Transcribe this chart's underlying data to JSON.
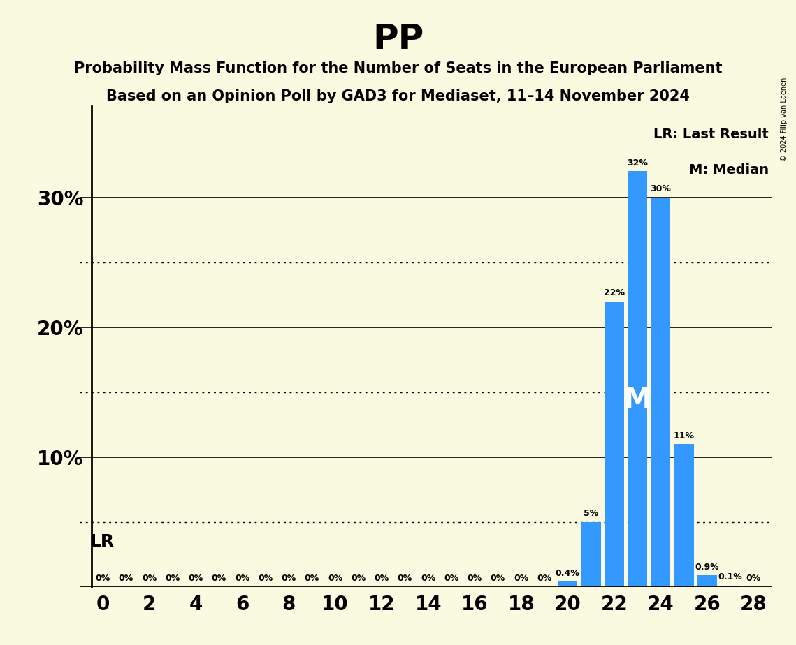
{
  "title": "PP",
  "subtitle1": "Probability Mass Function for the Number of Seats in the European Parliament",
  "subtitle2": "Based on an Opinion Poll by GAD3 for Mediaset, 11–14 November 2024",
  "copyright": "© 2024 Filip van Laenen",
  "x_min": 0,
  "x_max": 28,
  "x_tick_step": 2,
  "y_min": 0,
  "y_max": 35,
  "y_ticks_solid": [
    10,
    20,
    30
  ],
  "y_ticks_dotted": [
    5,
    15,
    25
  ],
  "background_color": "#FAFAE0",
  "bar_color": "#3399FF",
  "seats": [
    0,
    1,
    2,
    3,
    4,
    5,
    6,
    7,
    8,
    9,
    10,
    11,
    12,
    13,
    14,
    15,
    16,
    17,
    18,
    19,
    20,
    21,
    22,
    23,
    24,
    25,
    26,
    27,
    28
  ],
  "values": [
    0,
    0,
    0,
    0,
    0,
    0,
    0,
    0,
    0,
    0,
    0,
    0,
    0,
    0,
    0,
    0,
    0,
    0,
    0,
    0,
    0.4,
    5,
    22,
    32,
    30,
    11,
    0.9,
    0.1,
    0
  ],
  "median_seat": 23,
  "last_result_label": "LR",
  "legend_lr": "LR: Last Result",
  "legend_m": "M: Median"
}
